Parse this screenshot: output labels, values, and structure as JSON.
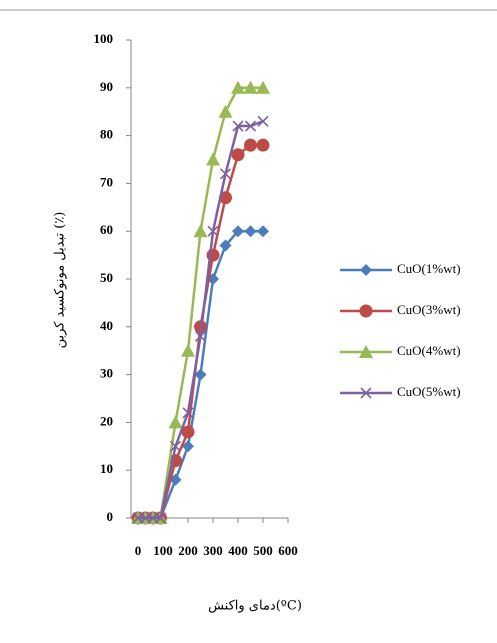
{
  "chart_data": {
    "type": "scatter",
    "y_label": "تبدیل مونوکسید کربن (٪)",
    "x_label": "دمای واکنش(ºC)",
    "xlim": [
      0,
      600
    ],
    "xticks": [
      0,
      100,
      200,
      300,
      400,
      500,
      600
    ],
    "ylim": [
      0,
      100
    ],
    "yticks": [
      0,
      10,
      20,
      30,
      40,
      50,
      60,
      70,
      80,
      90,
      100
    ],
    "legend": "right",
    "series": [
      {
        "name": "CuO(1%wt)",
        "color": "#4a7ebb",
        "marker": "diamond",
        "x": [
          0,
          30,
          60,
          90,
          150,
          200,
          250,
          300,
          350,
          400,
          450,
          500
        ],
        "values": [
          0,
          0,
          0,
          0,
          8,
          15,
          30,
          50,
          57,
          60,
          60,
          60
        ]
      },
      {
        "name": "CuO(3%wt)",
        "color": "#be4b48",
        "marker": "circle",
        "x": [
          0,
          30,
          60,
          90,
          150,
          200,
          250,
          300,
          350,
          400,
          450,
          500
        ],
        "values": [
          0,
          0,
          0,
          0,
          12,
          18,
          40,
          55,
          67,
          76,
          78,
          78
        ]
      },
      {
        "name": "CuO(4%wt)",
        "color": "#98b954",
        "marker": "triangle",
        "x": [
          0,
          30,
          60,
          90,
          150,
          200,
          250,
          300,
          350,
          400,
          450,
          500
        ],
        "values": [
          0,
          0,
          0,
          0,
          20,
          35,
          60,
          75,
          85,
          90,
          90,
          90
        ]
      },
      {
        "name": "CuO(5%wt)",
        "color": "#7d60a0",
        "marker": "x",
        "x": [
          0,
          30,
          60,
          90,
          150,
          200,
          250,
          300,
          350,
          400,
          450,
          500
        ],
        "values": [
          0,
          0,
          0,
          0,
          15,
          22,
          38,
          60,
          72,
          82,
          82,
          83
        ]
      }
    ]
  }
}
